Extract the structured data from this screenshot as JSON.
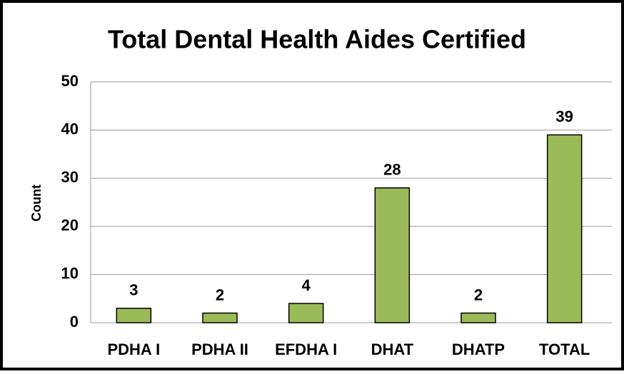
{
  "chart_data": {
    "type": "bar",
    "title": "Total Dental Health Aides Certified",
    "y_label": "Count",
    "categories": [
      "PDHA I",
      "PDHA II",
      "EFDHA I",
      "DHAT",
      "DHATP",
      "TOTAL"
    ],
    "values": [
      3,
      2,
      4,
      28,
      2,
      39
    ],
    "color": "#9bbb59",
    "ylim": [
      0,
      50
    ],
    "yticks": [
      0,
      10,
      20,
      30,
      40,
      50
    ],
    "grid": true
  }
}
